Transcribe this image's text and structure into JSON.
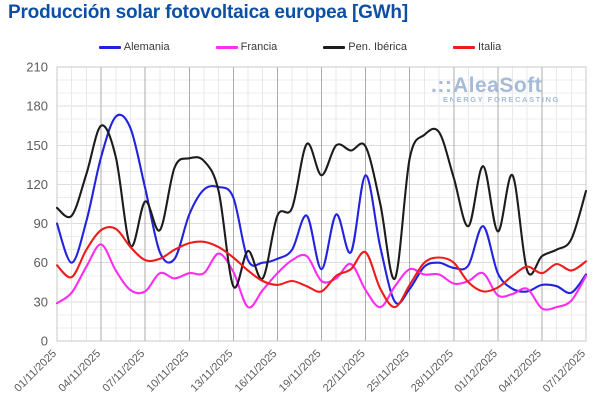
{
  "title": "Producción solar fotovoltaica europea [GWh]",
  "title_color": "#0e4fa4",
  "watermark": {
    "dots": ".::",
    "name": "AleaSoft",
    "tagline": "ENERGY FORECASTING",
    "color": "#a6bbd8"
  },
  "chart_data": {
    "type": "line",
    "x_tick_labels": [
      "01/11/2025",
      "04/11/2025",
      "07/11/2025",
      "10/11/2025",
      "13/11/2025",
      "16/11/2025",
      "19/11/2025",
      "22/11/2025",
      "25/11/2025",
      "28/11/2025",
      "01/12/2025",
      "04/12/2025",
      "07/12/2025"
    ],
    "points_per_tick": 3,
    "n_points": 37,
    "ylim": [
      0,
      210
    ],
    "y_ticks": [
      0,
      30,
      60,
      90,
      120,
      150,
      180,
      210
    ],
    "y_minor_grid_step": 10,
    "x_grid_interval_days": 1,
    "grid": true,
    "legend_position": "top",
    "series": [
      {
        "name": "Alemania",
        "color": "#2323dd",
        "values": [
          90,
          60,
          92,
          141,
          172,
          163,
          117,
          68,
          63,
          97,
          116,
          118,
          110,
          62,
          60,
          63,
          70,
          96,
          55,
          97,
          68,
          127,
          72,
          30,
          40,
          57,
          60,
          56,
          58,
          88,
          52,
          40,
          38,
          43,
          42,
          37,
          51
        ]
      },
      {
        "name": "Francia",
        "color": "#fb2ef0",
        "values": [
          29,
          37,
          57,
          74,
          54,
          39,
          38,
          52,
          48,
          52,
          52,
          67,
          53,
          26,
          39,
          52,
          62,
          65,
          46,
          48,
          59,
          39,
          26,
          42,
          55,
          51,
          51,
          44,
          46,
          52,
          35,
          36,
          40,
          25,
          26,
          31,
          50
        ]
      },
      {
        "name": "Pen. Ibérica",
        "color": "#1c1c1c",
        "values": [
          102,
          96,
          128,
          165,
          141,
          73,
          107,
          85,
          133,
          140,
          138,
          115,
          42,
          69,
          48,
          96,
          102,
          151,
          127,
          150,
          146,
          149,
          105,
          48,
          140,
          158,
          160,
          125,
          88,
          134,
          84,
          127,
          54,
          65,
          70,
          78,
          115
        ]
      },
      {
        "name": "Italia",
        "color": "#ee1c1c",
        "values": [
          58,
          49,
          70,
          85,
          86,
          72,
          62,
          63,
          70,
          75,
          76,
          72,
          64,
          54,
          46,
          43,
          46,
          42,
          38,
          50,
          55,
          68,
          40,
          26,
          43,
          60,
          64,
          60,
          45,
          38,
          41,
          50,
          57,
          52,
          59,
          54,
          61
        ]
      }
    ]
  }
}
